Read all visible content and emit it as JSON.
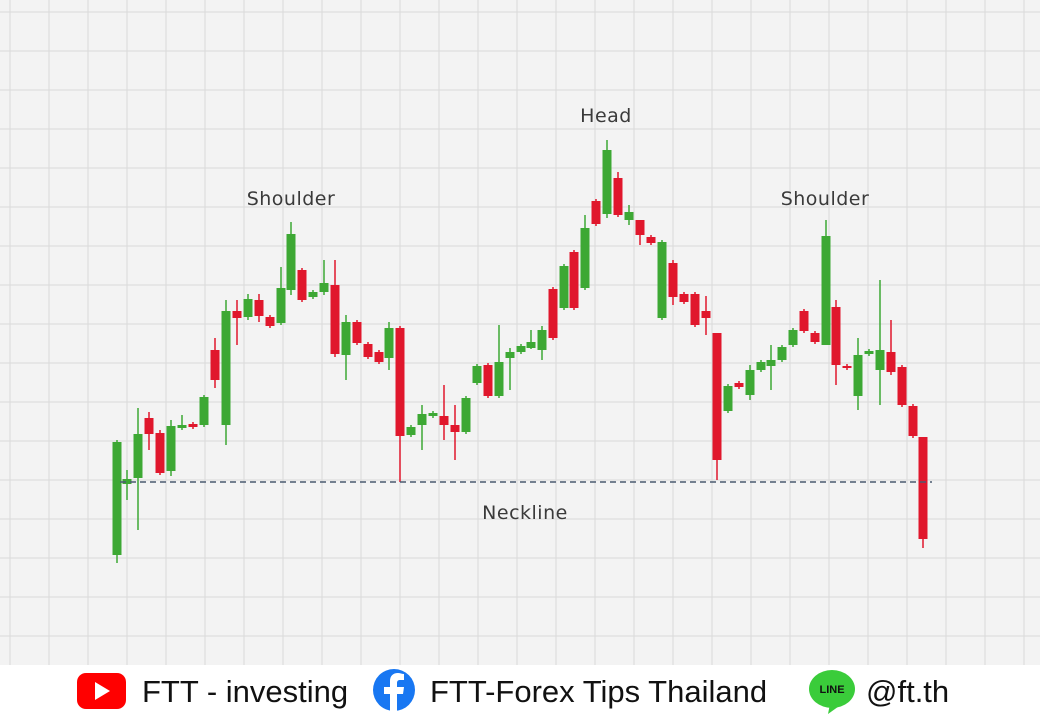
{
  "labels": {
    "head": "Head",
    "left_shoulder": "Shoulder",
    "right_shoulder": "Shoulder",
    "neckline": "Neckline"
  },
  "footer": {
    "youtube": "FTT - investing",
    "facebook": "FTT-Forex Tips Thailand",
    "line_icon": "LINE",
    "line": "@ft.th"
  }
}
